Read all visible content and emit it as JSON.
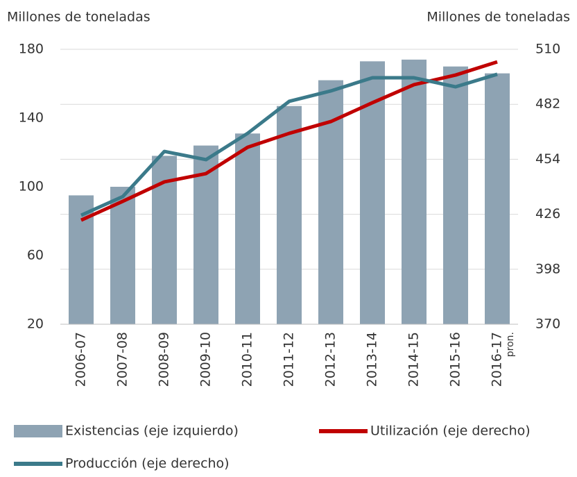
{
  "chart_data": {
    "type": "combo",
    "ylabel": "Millones de  toneladas",
    "y2label": "Millones de  toneladas",
    "categories": [
      "2006-07",
      "2007-08",
      "2008-09",
      "2009-10",
      "2010-11",
      "2011-12",
      "2012-13",
      "2013-14",
      "2014-15",
      "2015-16",
      "2016-17"
    ],
    "category_note": "pron.",
    "series": [
      {
        "name": "Existencias (eje izquierdo)",
        "type": "bar",
        "axis": "y",
        "color": "#8ea3b3",
        "values": [
          95,
          100,
          118,
          124,
          131,
          147,
          162,
          173,
          174,
          170,
          166
        ]
      },
      {
        "name": "Utilización (eje derecho)",
        "type": "line",
        "axis": "y2",
        "color": "#c00000",
        "values": [
          423,
          432.6,
          442.5,
          446.7,
          460.1,
          467.2,
          473.2,
          482.8,
          492,
          496.9,
          503.6
        ]
      },
      {
        "name": "Producción (eje derecho)",
        "type": "line",
        "axis": "y2",
        "color": "#3b7a8a",
        "values": [
          425.5,
          435,
          458,
          453.8,
          467.2,
          483.5,
          488.8,
          495.5,
          495.5,
          490.9,
          497.3
        ]
      }
    ],
    "ylim": [
      20,
      180
    ],
    "yticks": [
      20,
      60,
      100,
      140,
      180
    ],
    "y2lim": [
      370,
      510
    ],
    "y2ticks": [
      370,
      398,
      426,
      454,
      482,
      510
    ],
    "grid": true
  }
}
